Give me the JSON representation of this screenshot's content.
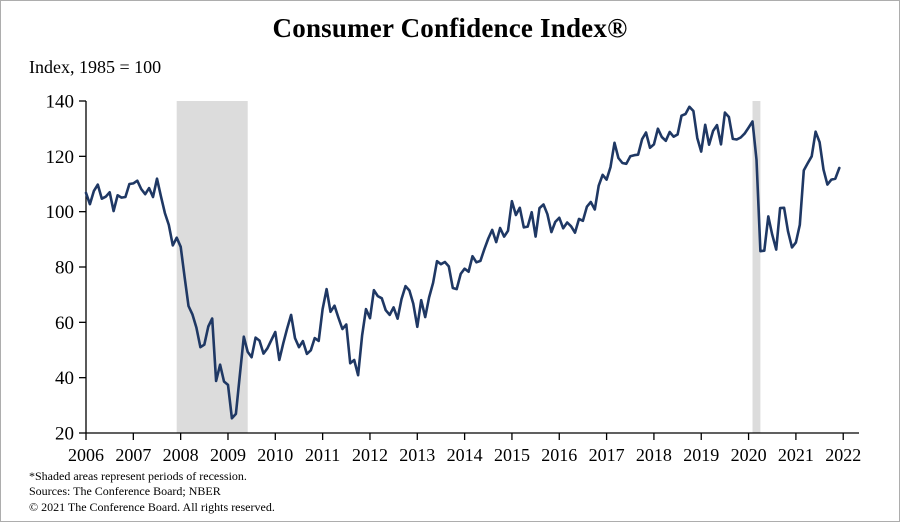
{
  "chart_data": {
    "type": "line",
    "title": "Consumer Confidence Index®",
    "ylabel": "Index,  1985 = 100",
    "xlabel": "",
    "grid": false,
    "legend_position": "none",
    "ylim": [
      20,
      140
    ],
    "y_ticks": [
      20,
      40,
      60,
      80,
      100,
      120,
      140
    ],
    "x_start_year": 2006,
    "x_tick_years": [
      2006,
      2007,
      2008,
      2009,
      2010,
      2011,
      2012,
      2013,
      2014,
      2015,
      2016,
      2017,
      2018,
      2019,
      2020,
      2021,
      2022
    ],
    "x_domain_months": [
      0,
      196
    ],
    "line_color": "#1f3864",
    "recession_color": "#dcdcdc",
    "axis_color": "#000000",
    "series": [
      {
        "name": "Consumer Confidence Index (1985 = 100), monthly",
        "color": "#1f3864",
        "monthly_values": [
          106.8,
          102.7,
          107.5,
          109.8,
          104.7,
          105.4,
          107.0,
          100.2,
          105.9,
          105.1,
          105.3,
          110.0,
          110.2,
          111.2,
          108.2,
          106.3,
          108.5,
          105.3,
          111.9,
          105.6,
          99.5,
          95.2,
          87.8,
          90.6,
          87.3,
          76.4,
          65.9,
          62.8,
          58.1,
          51.0,
          51.9,
          58.5,
          61.4,
          38.8,
          44.7,
          38.6,
          37.4,
          25.3,
          26.9,
          40.8,
          54.8,
          49.3,
          47.4,
          54.5,
          53.4,
          48.7,
          50.6,
          53.6,
          56.5,
          46.4,
          52.3,
          57.7,
          62.7,
          54.3,
          51.0,
          53.2,
          48.6,
          49.9,
          54.3,
          53.3,
          64.8,
          72.0,
          63.8,
          66.0,
          61.7,
          57.6,
          59.2,
          45.2,
          46.4,
          40.9,
          55.2,
          64.8,
          61.5,
          71.6,
          69.5,
          68.7,
          64.4,
          62.7,
          65.4,
          61.3,
          68.4,
          73.1,
          71.5,
          66.7,
          58.4,
          68.0,
          61.9,
          69.0,
          74.3,
          82.1,
          81.0,
          81.8,
          80.2,
          72.4,
          72.0,
          77.5,
          79.4,
          78.3,
          83.9,
          81.7,
          82.2,
          86.4,
          90.3,
          93.4,
          89.0,
          94.1,
          91.0,
          93.1,
          103.8,
          98.8,
          101.4,
          94.3,
          94.6,
          99.8,
          91.0,
          101.3,
          102.6,
          99.1,
          92.6,
          96.3,
          97.8,
          94.0,
          96.1,
          94.7,
          92.4,
          97.4,
          96.7,
          101.8,
          103.5,
          100.8,
          109.4,
          113.3,
          111.6,
          116.1,
          124.9,
          119.4,
          117.6,
          117.3,
          120.0,
          120.4,
          120.6,
          126.2,
          128.6,
          123.1,
          124.3,
          130.0,
          127.0,
          125.6,
          128.8,
          127.1,
          127.9,
          134.7,
          135.3,
          137.9,
          136.4,
          126.6,
          121.7,
          131.4,
          124.2,
          129.2,
          131.3,
          124.3,
          135.8,
          134.2,
          126.3,
          126.1,
          126.8,
          128.2,
          130.4,
          132.6,
          118.8,
          85.7,
          85.9,
          98.3,
          91.7,
          86.3,
          101.3,
          101.4,
          92.9,
          87.1,
          88.9,
          95.2,
          114.9,
          117.5,
          120.0,
          128.9,
          125.1,
          115.2,
          109.8,
          111.6,
          111.9,
          115.8
        ]
      }
    ],
    "recessions": [
      {
        "start_month": 23,
        "end_month": 41,
        "label": "2008–2009 recession"
      },
      {
        "start_month": 169,
        "end_month": 171,
        "label": "2020 recession"
      }
    ]
  },
  "footnotes": [
    "*Shaded areas represent periods of recession.",
    "Sources: The Conference Board; NBER",
    "© 2021 The Conference Board.  All rights reserved."
  ]
}
